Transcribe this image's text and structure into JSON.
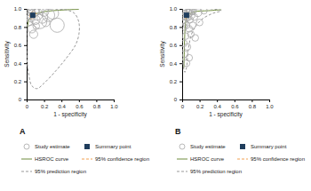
{
  "chart_data": [
    {
      "type": "scatter",
      "title": "A",
      "xlabel": "1 - specificity",
      "ylabel": "Sensitivity",
      "xlim": [
        0,
        1
      ],
      "ylim": [
        0,
        1
      ],
      "xticks": [
        0,
        0.2,
        0.4,
        0.6,
        0.8,
        {
          "value": 1,
          "label": "1.0"
        }
      ],
      "yticks": [
        0,
        0.2,
        0.4,
        0.6,
        0.8,
        {
          "value": 1,
          "label": "1.0"
        }
      ],
      "legend": "bottom",
      "series": [
        {
          "name": "Study estimate",
          "type": "scatter",
          "marker": "circle",
          "color": "#a8a8a8",
          "x": [
            0.02,
            0.04,
            0.05,
            0.03,
            0.08,
            0.1,
            0.12,
            0.15,
            0.18,
            0.06,
            0.2,
            0.25,
            0.3,
            0.35,
            0.08,
            0.22,
            0.02,
            0.14,
            0.05,
            0.11
          ],
          "values": [
            0.97,
            0.95,
            0.9,
            0.85,
            0.97,
            0.88,
            0.94,
            0.86,
            0.9,
            0.78,
            0.97,
            0.93,
            0.95,
            0.82,
            0.72,
            0.85,
            0.92,
            0.99,
            0.99,
            0.81
          ],
          "size": [
            3,
            4,
            3,
            2,
            5,
            4,
            6,
            9,
            5,
            3,
            4,
            7,
            6,
            9,
            3,
            3,
            2,
            3,
            2,
            2
          ]
        },
        {
          "name": "Summary point",
          "type": "scatter",
          "marker": "square",
          "color": "#1f3d5c",
          "x": [
            0.07
          ],
          "values": [
            0.93
          ]
        },
        {
          "name": "HSROC curve",
          "type": "line",
          "line_style": "solid",
          "color": "#6e8b3d",
          "x": [
            0.01,
            0.02,
            0.04,
            0.07,
            0.12,
            0.2,
            0.3,
            0.45,
            0.6
          ],
          "values": [
            0.8,
            0.86,
            0.9,
            0.93,
            0.95,
            0.97,
            0.98,
            0.99,
            0.995
          ]
        },
        {
          "name": "95% confidence region",
          "type": "line",
          "line_style": "dashed",
          "color": "#f0a050",
          "x": [
            0.04,
            0.06,
            0.1,
            0.11,
            0.08,
            0.04,
            0.04
          ],
          "values": [
            0.9,
            0.89,
            0.91,
            0.95,
            0.97,
            0.95,
            0.9
          ]
        },
        {
          "name": "95% prediction region",
          "type": "line",
          "line_style": "dashed",
          "color": "#999999",
          "x": [
            0.01,
            0.0,
            0.0,
            0.02,
            0.06,
            0.12,
            0.2,
            0.32,
            0.45,
            0.56,
            0.6,
            0.6,
            0.55,
            0.45,
            0.3,
            0.15,
            0.01
          ],
          "values": [
            0.98,
            0.8,
            0.5,
            0.3,
            0.15,
            0.12,
            0.18,
            0.3,
            0.45,
            0.6,
            0.72,
            0.85,
            0.95,
            0.99,
            1.0,
            1.0,
            0.98
          ]
        }
      ]
    },
    {
      "type": "scatter",
      "title": "B",
      "xlabel": "1 - specificity",
      "ylabel": "Sensitivity",
      "xlim": [
        0,
        1
      ],
      "ylim": [
        0,
        1
      ],
      "xticks": [
        0,
        0.2,
        0.4,
        0.6,
        0.8,
        {
          "value": 1,
          "label": "1.0"
        }
      ],
      "yticks": [
        0,
        0.2,
        0.4,
        0.6,
        0.8,
        {
          "value": 1,
          "label": "1.0"
        }
      ],
      "legend": "bottom",
      "series": [
        {
          "name": "Study estimate",
          "type": "scatter",
          "marker": "circle",
          "color": "#a8a8a8",
          "x": [
            0.01,
            0.02,
            0.03,
            0.04,
            0.05,
            0.06,
            0.07,
            0.08,
            0.09,
            0.1,
            0.12,
            0.14,
            0.03,
            0.02,
            0.05,
            0.08,
            0.12,
            0.04,
            0.1,
            0.15,
            0.02,
            0.06,
            0.03,
            0.08,
            0.05,
            0.18,
            0.25,
            0.2,
            0.01,
            0.06,
            0.11
          ],
          "values": [
            0.98,
            0.95,
            0.99,
            0.92,
            0.97,
            0.9,
            0.95,
            0.99,
            0.88,
            0.93,
            0.97,
            0.91,
            0.85,
            0.8,
            0.82,
            0.78,
            0.82,
            0.7,
            0.72,
            0.68,
            0.62,
            0.58,
            0.5,
            0.46,
            0.4,
            0.96,
            0.98,
            0.85,
            0.9,
            0.99,
            0.99
          ],
          "size": [
            3,
            2,
            4,
            3,
            5,
            2,
            3,
            2,
            2,
            3,
            2,
            2,
            2,
            2,
            2,
            2,
            2,
            2,
            2,
            2,
            2,
            2,
            2,
            2,
            2,
            3,
            2,
            2,
            6,
            7,
            4
          ]
        },
        {
          "name": "Summary point",
          "type": "scatter",
          "marker": "square",
          "color": "#1f3d5c",
          "x": [
            0.05
          ],
          "values": [
            0.93
          ]
        },
        {
          "name": "HSROC curve",
          "type": "line",
          "line_style": "solid",
          "color": "#6e8b3d",
          "x": [
            0.02,
            0.025,
            0.03,
            0.04,
            0.05,
            0.08,
            0.15,
            0.3,
            0.45
          ],
          "values": [
            0.35,
            0.55,
            0.72,
            0.85,
            0.9,
            0.94,
            0.97,
            0.98,
            0.99
          ]
        },
        {
          "name": "95% confidence region",
          "type": "line",
          "line_style": "dashed",
          "color": "#f0a050",
          "x": [
            0.03,
            0.05,
            0.08,
            0.07,
            0.04,
            0.03
          ],
          "values": [
            0.9,
            0.89,
            0.92,
            0.96,
            0.96,
            0.9
          ]
        },
        {
          "name": "95% prediction region",
          "type": "line",
          "line_style": "dashed",
          "color": "#999999",
          "x": [
            0.0,
            0.0,
            0.01,
            0.03,
            0.05,
            0.07,
            0.12,
            0.22,
            0.35,
            0.45,
            0.35,
            0.15,
            0.02,
            0.0
          ],
          "values": [
            0.9,
            0.6,
            0.4,
            0.3,
            0.35,
            0.55,
            0.75,
            0.88,
            0.95,
            0.98,
            1.0,
            1.0,
            0.98,
            0.9
          ]
        }
      ]
    }
  ]
}
